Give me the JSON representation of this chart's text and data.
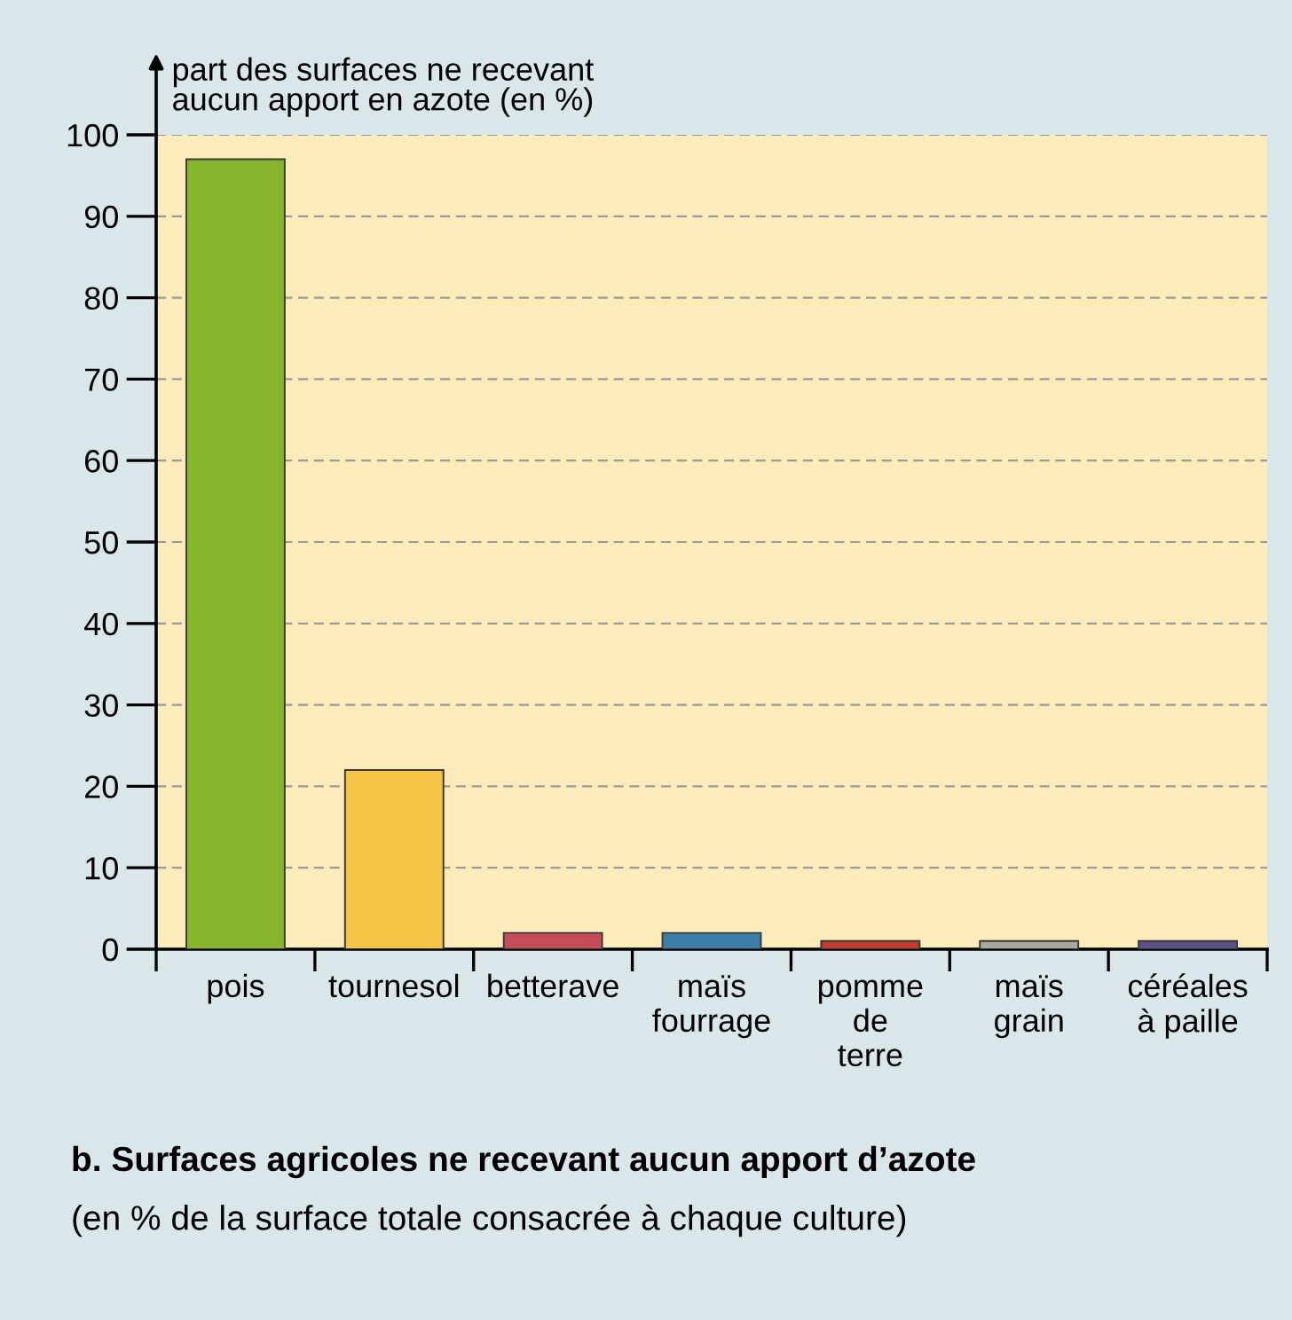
{
  "chart_data": {
    "type": "bar",
    "title": "b. Surfaces agricoles ne recevant aucun apport d’azote",
    "subtitle": "(en % de la surface totale consacrée à chaque culture)",
    "ylabel": "part des surfaces ne recevant\naucun apport en azote (en %)",
    "categories": [
      "pois",
      "tournesol",
      "betterave",
      "maïs\nfourrage",
      "pomme\nde\nterre",
      "maïs\ngrain",
      "céréales\nà paille"
    ],
    "values": [
      97,
      22,
      2,
      2,
      1,
      1,
      1
    ],
    "colors": [
      "#86b52c",
      "#f6c444",
      "#c44d58",
      "#3b7fa8",
      "#c8382c",
      "#a8a8a0",
      "#5b4f8c"
    ],
    "ylim": [
      0,
      100
    ],
    "yticks": [
      0,
      10,
      20,
      30,
      40,
      50,
      60,
      70,
      80,
      90,
      100
    ],
    "grid": "y",
    "legend": false
  }
}
